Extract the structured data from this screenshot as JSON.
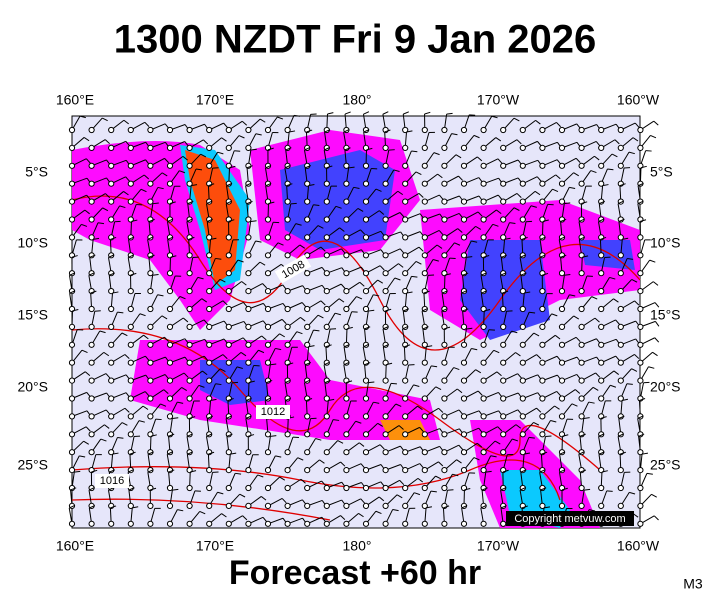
{
  "title": "1300 NZDT Fri 9 Jan 2026",
  "footer": "Forecast +60 hr",
  "model": "M3",
  "copyright": "Copyright metvuw.com",
  "longitude_labels": [
    "160°E",
    "170°E",
    "180°",
    "170°W",
    "160°W"
  ],
  "latitude_labels": [
    "5°S",
    "10°S",
    "15°S",
    "20°S",
    "25°S"
  ],
  "isobar_labels": [
    "1008",
    "1012",
    "1016"
  ]
}
